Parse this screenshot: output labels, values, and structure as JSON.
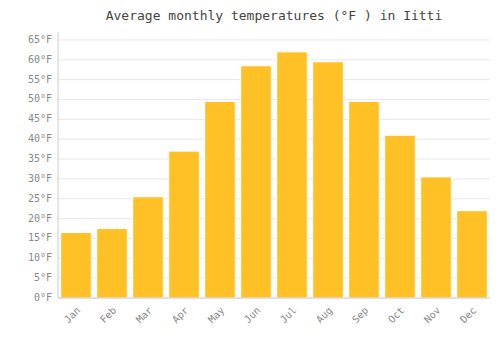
{
  "chart_data": {
    "type": "bar",
    "title": "Average monthly temperatures (°F ) in Iitti",
    "categories": [
      "Jan",
      "Feb",
      "Mar",
      "Apr",
      "May",
      "Jun",
      "Jul",
      "Aug",
      "Sep",
      "Oct",
      "Nov",
      "Dec"
    ],
    "values": [
      16.5,
      17.5,
      25.5,
      37.0,
      49.5,
      58.5,
      62.0,
      59.5,
      49.5,
      41.0,
      30.5,
      22.0
    ],
    "color": "#FFC125",
    "ylim": [
      0,
      67
    ],
    "yticks": [
      {
        "value": 0,
        "label": "0°F"
      },
      {
        "value": 5,
        "label": "5°F"
      },
      {
        "value": 10,
        "label": "10°F"
      },
      {
        "value": 15,
        "label": "15°F"
      },
      {
        "value": 20,
        "label": "20°F"
      },
      {
        "value": 25,
        "label": "25°F"
      },
      {
        "value": 30,
        "label": "30°F"
      },
      {
        "value": 35,
        "label": "35°F"
      },
      {
        "value": 40,
        "label": "40°F"
      },
      {
        "value": 45,
        "label": "45°F"
      },
      {
        "value": 50,
        "label": "50°F"
      },
      {
        "value": 55,
        "label": "55°F"
      },
      {
        "value": 60,
        "label": "60°F"
      },
      {
        "value": 65,
        "label": "65°F"
      }
    ],
    "grid": true
  }
}
